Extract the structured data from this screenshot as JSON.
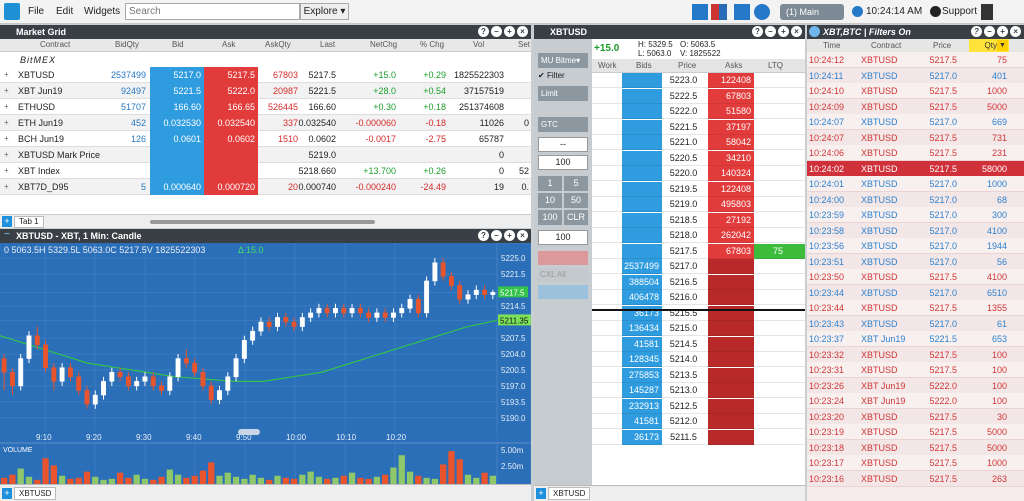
{
  "menu": {
    "file": "File",
    "edit": "Edit",
    "widgets": "Widgets",
    "search_placeholder": "Search",
    "explore": "Explore ▾",
    "account": "(1) Main",
    "time": "10:24:14 AM",
    "support": "Support"
  },
  "market_grid": {
    "title": "Market Grid",
    "headers": [
      "Contract",
      "BidQty",
      "Bid",
      "Ask",
      "AskQty",
      "Last",
      "NetChg",
      "% Chg",
      "Vol",
      "Set"
    ],
    "exchange": "BitMEX",
    "rows": [
      {
        "contract": "XBTUSD",
        "bidqty": "2537499",
        "bid": "5217.0",
        "ask": "5217.5",
        "askqty": "67803",
        "last": "5217.5",
        "netchg": "+15.0",
        "pct": "+0.29",
        "vol": "1825522303",
        "set": ""
      },
      {
        "contract": "XBT Jun19",
        "bidqty": "92497",
        "bid": "5221.5",
        "ask": "5222.0",
        "askqty": "20987",
        "last": "5221.5",
        "netchg": "+28.0",
        "pct": "+0.54",
        "vol": "37157519",
        "set": ""
      },
      {
        "contract": "ETHUSD",
        "bidqty": "51707",
        "bid": "166.60",
        "ask": "166.65",
        "askqty": "526445",
        "last": "166.60",
        "netchg": "+0.30",
        "pct": "+0.18",
        "vol": "251374608",
        "set": ""
      },
      {
        "contract": "ETH Jun19",
        "bidqty": "452",
        "bid": "0.032530",
        "ask": "0.032540",
        "askqty": "337",
        "last": "0.032540",
        "netchg": "-0.000060",
        "pct": "-0.18",
        "vol": "11026",
        "set": "0"
      },
      {
        "contract": "BCH Jun19",
        "bidqty": "126",
        "bid": "0.0601",
        "ask": "0.0602",
        "askqty": "1510",
        "last": "0.0602",
        "netchg": "-0.0017",
        "pct": "-2.75",
        "vol": "65787",
        "set": ""
      },
      {
        "contract": "XBTUSD Mark Price",
        "bidqty": "",
        "bid": "",
        "ask": "",
        "askqty": "",
        "last": "5219.0",
        "netchg": "",
        "pct": "",
        "vol": "0",
        "set": ""
      },
      {
        "contract": "XBT Index",
        "bidqty": "",
        "bid": "",
        "ask": "",
        "askqty": "",
        "last": "5218.660",
        "netchg": "+13.700",
        "pct": "+0.26",
        "vol": "0",
        "set": "52"
      },
      {
        "contract": "XBT7D_D95",
        "bidqty": "5",
        "bid": "0.000640",
        "ask": "0.000720",
        "askqty": "20",
        "last": "0.000740",
        "netchg": "-0.000240",
        "pct": "-24.49",
        "vol": "19",
        "set": "0."
      }
    ],
    "tab": "Tab 1"
  },
  "chart": {
    "title": "XBTUSD - XBT, 1 Min: Candle",
    "ohlc": "0 5063.5H 5329.5L 5063.0C 5217.5V 1825522303",
    "delta": "Δ 15.0",
    "tab": "XBTUSD",
    "last_label": "5217.5",
    "ma_label": "5211.35",
    "vol_labels": [
      "5.00m",
      "2.50m"
    ],
    "volume_label": "VOLUME"
  },
  "chart_data": {
    "type": "candlestick",
    "title": "XBTUSD - XBT, 1 Min: Candle",
    "x_ticks": [
      "9:10",
      "9:20",
      "9:30",
      "9:40",
      "9:50",
      "10:00",
      "10:10",
      "10:20"
    ],
    "y_ticks": [
      5225.0,
      5221.5,
      5217.5,
      5214.5,
      5211.35,
      5207.5,
      5204.0,
      5200.5,
      5197.0,
      5193.5,
      5190.0
    ],
    "ylim": [
      5188,
      5227
    ],
    "candles": [
      [
        5203,
        5200,
        5196,
        5204
      ],
      [
        5200,
        5197,
        5195,
        5201
      ],
      [
        5197,
        5203,
        5196,
        5204
      ],
      [
        5203,
        5208,
        5202,
        5209
      ],
      [
        5208,
        5206,
        5205,
        5210
      ],
      [
        5206,
        5201,
        5200,
        5207
      ],
      [
        5201,
        5198,
        5196,
        5202
      ],
      [
        5198,
        5201,
        5197,
        5202
      ],
      [
        5201,
        5199,
        5198,
        5202
      ],
      [
        5199,
        5196,
        5195,
        5200
      ],
      [
        5196,
        5193,
        5192,
        5197
      ],
      [
        5193,
        5195,
        5192,
        5196
      ],
      [
        5195,
        5198,
        5194,
        5199
      ],
      [
        5198,
        5200,
        5197,
        5201
      ],
      [
        5200,
        5199,
        5198,
        5201
      ],
      [
        5199,
        5197,
        5196,
        5200
      ],
      [
        5197,
        5198,
        5196,
        5199
      ],
      [
        5198,
        5199,
        5197,
        5200
      ],
      [
        5199,
        5197,
        5196,
        5200
      ],
      [
        5197,
        5196,
        5195,
        5198
      ],
      [
        5196,
        5199,
        5195,
        5200
      ],
      [
        5199,
        5203,
        5198,
        5204
      ],
      [
        5203,
        5202,
        5201,
        5205
      ],
      [
        5202,
        5200,
        5199,
        5203
      ],
      [
        5200,
        5197,
        5196,
        5201
      ],
      [
        5197,
        5194,
        5193,
        5198
      ],
      [
        5194,
        5196,
        5193,
        5197
      ],
      [
        5196,
        5199,
        5195,
        5200
      ],
      [
        5199,
        5203,
        5198,
        5204
      ],
      [
        5203,
        5207,
        5202,
        5208
      ],
      [
        5207,
        5209,
        5206,
        5210
      ],
      [
        5209,
        5211,
        5208,
        5212
      ],
      [
        5211,
        5210,
        5209,
        5212
      ],
      [
        5210,
        5212,
        5209,
        5213
      ],
      [
        5212,
        5211,
        5210,
        5213
      ],
      [
        5211,
        5210,
        5209,
        5212
      ],
      [
        5210,
        5212,
        5209,
        5213
      ],
      [
        5212,
        5213,
        5211,
        5214
      ],
      [
        5213,
        5214,
        5212,
        5215
      ],
      [
        5214,
        5213,
        5212,
        5215
      ],
      [
        5213,
        5214,
        5212,
        5215
      ],
      [
        5214,
        5213,
        5212,
        5215
      ],
      [
        5213,
        5214,
        5212,
        5215
      ],
      [
        5214,
        5213,
        5212,
        5215
      ],
      [
        5213,
        5212,
        5211,
        5214
      ],
      [
        5212,
        5213,
        5211,
        5214
      ],
      [
        5213,
        5212,
        5211,
        5214
      ],
      [
        5212,
        5213,
        5211,
        5214
      ],
      [
        5213,
        5214,
        5212,
        5215
      ],
      [
        5214,
        5216,
        5213,
        5217
      ],
      [
        5216,
        5213,
        5212,
        5217
      ],
      [
        5213,
        5220,
        5212,
        5221
      ],
      [
        5220,
        5224,
        5219,
        5225
      ],
      [
        5224,
        5221,
        5220,
        5225
      ],
      [
        5221,
        5219,
        5218,
        5222
      ],
      [
        5219,
        5216,
        5215,
        5220
      ],
      [
        5216,
        5217,
        5215,
        5218
      ],
      [
        5217,
        5218,
        5216,
        5219
      ],
      [
        5218,
        5217,
        5216,
        5219
      ],
      [
        5217,
        5217.5,
        5216,
        5218
      ]
    ],
    "ma": [
      5208,
      5206,
      5204,
      5202,
      5201,
      5200,
      5199,
      5198.5,
      5198,
      5198,
      5199,
      5200,
      5202,
      5204,
      5206,
      5208,
      5210,
      5211.35
    ],
    "volumes": [
      0.6,
      0.9,
      1.5,
      0.7,
      0.4,
      2.5,
      1.8,
      0.8,
      0.5,
      0.6,
      1.2,
      0.7,
      0.4,
      0.5,
      1.1,
      0.6,
      0.9,
      0.5,
      0.4,
      0.7,
      1.4,
      0.9,
      0.6,
      0.8,
      1.3,
      2.1,
      0.8,
      1.1,
      0.7,
      0.5,
      0.9,
      0.6,
      0.4,
      0.8,
      0.6,
      0.5,
      0.9,
      1.2,
      0.7,
      0.5,
      0.6,
      0.8,
      1.1,
      0.6,
      0.5,
      0.7,
      0.9,
      1.6,
      2.8,
      1.2,
      0.8,
      0.6,
      0.5,
      1.9,
      3.2,
      2.4,
      0.9,
      0.6,
      1.1,
      0.8
    ]
  },
  "dom": {
    "title": "XBTUSD",
    "netchg": "+15.0",
    "h": "H: 5329.5",
    "l": "L: 5063.0",
    "o": "O: 5063.5",
    "v": "V: 1825522",
    "headers": [
      "Work",
      "Bids",
      "Price",
      "Asks",
      "LTQ"
    ],
    "account": "MU Bitme▾",
    "filter": "Filter",
    "order_type": "Limit",
    "tif": "GTC",
    "dash": "--",
    "qty": "100",
    "qty_buttons": [
      "1",
      "5",
      "10",
      "50",
      "100",
      "CLR"
    ],
    "qty2": "100",
    "cxl": "CXL All",
    "tab": "XBTUSD",
    "rows": [
      {
        "bid": "",
        "price": "5223.0",
        "ask": "122408",
        "ltq": ""
      },
      {
        "bid": "",
        "price": "5222.5",
        "ask": "67803",
        "ltq": ""
      },
      {
        "bid": "",
        "price": "5222.0",
        "ask": "51580",
        "ltq": ""
      },
      {
        "bid": "",
        "price": "5221.5",
        "ask": "37197",
        "ltq": ""
      },
      {
        "bid": "",
        "price": "5221.0",
        "ask": "58042",
        "ltq": ""
      },
      {
        "bid": "",
        "price": "5220.5",
        "ask": "34210",
        "ltq": ""
      },
      {
        "bid": "",
        "price": "5220.0",
        "ask": "140324",
        "ltq": ""
      },
      {
        "bid": "",
        "price": "5219.5",
        "ask": "122408",
        "ltq": ""
      },
      {
        "bid": "",
        "price": "5219.0",
        "ask": "495803",
        "ltq": ""
      },
      {
        "bid": "",
        "price": "5218.5",
        "ask": "27192",
        "ltq": ""
      },
      {
        "bid": "",
        "price": "5218.0",
        "ask": "262042",
        "ltq": ""
      },
      {
        "bid": "",
        "price": "5217.5",
        "ask": "67803",
        "ltq": "75"
      },
      {
        "bid": "2537499",
        "price": "5217.0",
        "ask": "",
        "ltq": ""
      },
      {
        "bid": "388504",
        "price": "5216.5",
        "ask": "",
        "ltq": ""
      },
      {
        "bid": "406478",
        "price": "5216.0",
        "ask": "",
        "ltq": ""
      },
      {
        "bid": "36173",
        "price": "5215.5",
        "ask": "",
        "ltq": ""
      },
      {
        "bid": "136434",
        "price": "5215.0",
        "ask": "",
        "ltq": ""
      },
      {
        "bid": "41581",
        "price": "5214.5",
        "ask": "",
        "ltq": ""
      },
      {
        "bid": "128345",
        "price": "5214.0",
        "ask": "",
        "ltq": ""
      },
      {
        "bid": "275853",
        "price": "5213.5",
        "ask": "",
        "ltq": ""
      },
      {
        "bid": "145287",
        "price": "5213.0",
        "ask": "",
        "ltq": ""
      },
      {
        "bid": "232913",
        "price": "5212.5",
        "ask": "",
        "ltq": ""
      },
      {
        "bid": "41581",
        "price": "5212.0",
        "ask": "",
        "ltq": ""
      },
      {
        "bid": "36173",
        "price": "5211.5",
        "ask": "",
        "ltq": ""
      }
    ]
  },
  "tas": {
    "title": "XBT,BTC | Filters On",
    "headers": [
      "Time",
      "Contract",
      "Price",
      "Qty"
    ],
    "rows": [
      {
        "time": "10:24:12",
        "contract": "XBTUSD",
        "price": "5217.5",
        "qty": "75",
        "side": "sell"
      },
      {
        "time": "10:24:11",
        "contract": "XBTUSD",
        "price": "5217.0",
        "qty": "401",
        "side": "buy"
      },
      {
        "time": "10:24:10",
        "contract": "XBTUSD",
        "price": "5217.5",
        "qty": "1000",
        "side": "sell"
      },
      {
        "time": "10:24:09",
        "contract": "XBTUSD",
        "price": "5217.5",
        "qty": "5000",
        "side": "sell"
      },
      {
        "time": "10:24:07",
        "contract": "XBTUSD",
        "price": "5217.0",
        "qty": "669",
        "side": "buy"
      },
      {
        "time": "10:24:07",
        "contract": "XBTUSD",
        "price": "5217.5",
        "qty": "731",
        "side": "sell"
      },
      {
        "time": "10:24:06",
        "contract": "XBTUSD",
        "price": "5217.5",
        "qty": "231",
        "side": "sell"
      },
      {
        "time": "10:24:02",
        "contract": "XBTUSD",
        "price": "5217.5",
        "qty": "58000",
        "side": "highlight"
      },
      {
        "time": "10:24:01",
        "contract": "XBTUSD",
        "price": "5217.0",
        "qty": "1000",
        "side": "buy"
      },
      {
        "time": "10:24:00",
        "contract": "XBTUSD",
        "price": "5217.0",
        "qty": "68",
        "side": "buy"
      },
      {
        "time": "10:23:59",
        "contract": "XBTUSD",
        "price": "5217.0",
        "qty": "300",
        "side": "buy"
      },
      {
        "time": "10:23:58",
        "contract": "XBTUSD",
        "price": "5217.0",
        "qty": "4100",
        "side": "buy"
      },
      {
        "time": "10:23:56",
        "contract": "XBTUSD",
        "price": "5217.0",
        "qty": "1944",
        "side": "buy"
      },
      {
        "time": "10:23:51",
        "contract": "XBTUSD",
        "price": "5217.0",
        "qty": "56",
        "side": "buy"
      },
      {
        "time": "10:23:50",
        "contract": "XBTUSD",
        "price": "5217.5",
        "qty": "4100",
        "side": "sell"
      },
      {
        "time": "10:23:44",
        "contract": "XBTUSD",
        "price": "5217.0",
        "qty": "6510",
        "side": "buy"
      },
      {
        "time": "10:23:44",
        "contract": "XBTUSD",
        "price": "5217.5",
        "qty": "1355",
        "side": "sell"
      },
      {
        "time": "10:23:43",
        "contract": "XBTUSD",
        "price": "5217.0",
        "qty": "61",
        "side": "buy"
      },
      {
        "time": "10:23:37",
        "contract": "XBT Jun19",
        "price": "5221.5",
        "qty": "653",
        "side": "buy"
      },
      {
        "time": "10:23:32",
        "contract": "XBTUSD",
        "price": "5217.5",
        "qty": "100",
        "side": "sell"
      },
      {
        "time": "10:23:31",
        "contract": "XBTUSD",
        "price": "5217.5",
        "qty": "100",
        "side": "sell"
      },
      {
        "time": "10:23:26",
        "contract": "XBT Jun19",
        "price": "5222.0",
        "qty": "100",
        "side": "sell"
      },
      {
        "time": "10:23:24",
        "contract": "XBT Jun19",
        "price": "5222.0",
        "qty": "100",
        "side": "sell"
      },
      {
        "time": "10:23:20",
        "contract": "XBTUSD",
        "price": "5217.5",
        "qty": "30",
        "side": "sell"
      },
      {
        "time": "10:23:19",
        "contract": "XBTUSD",
        "price": "5217.5",
        "qty": "5000",
        "side": "sell"
      },
      {
        "time": "10:23:18",
        "contract": "XBTUSD",
        "price": "5217.5",
        "qty": "5000",
        "side": "sell"
      },
      {
        "time": "10:23:17",
        "contract": "XBTUSD",
        "price": "5217.5",
        "qty": "1000",
        "side": "sell"
      },
      {
        "time": "10:23:16",
        "contract": "XBTUSD",
        "price": "5217.5",
        "qty": "263",
        "side": "sell"
      }
    ]
  },
  "colors": {
    "bid": "#2f9ce0",
    "ask": "#e23b3b",
    "chart_bg": "#2b6fb8",
    "up": "#ffffff",
    "down": "#e8542e",
    "ma": "#33c24a"
  }
}
